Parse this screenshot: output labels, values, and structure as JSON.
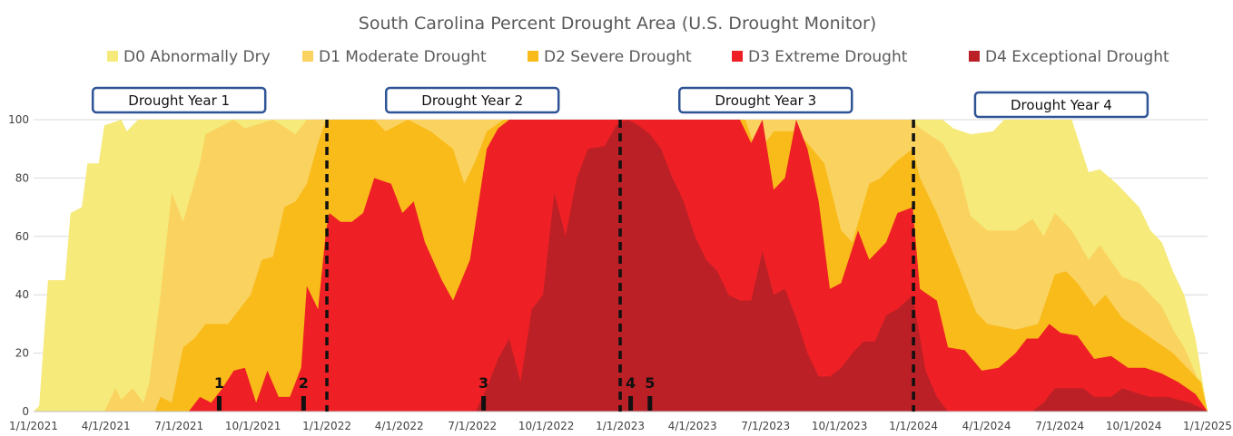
{
  "chart_data": {
    "type": "area",
    "stacking": "cumulative-overlay",
    "title": "South Carolina Percent Drought Area (U.S. Drought Monitor)",
    "ylim": [
      0,
      100
    ],
    "yticks": [
      0,
      20,
      40,
      60,
      80,
      100
    ],
    "xlim": [
      "2021-01-01",
      "2025-01-01"
    ],
    "xticks": [
      "1/1/2021",
      "4/1/2021",
      "7/1/2021",
      "10/1/2021",
      "1/1/2022",
      "4/1/2022",
      "7/1/2022",
      "10/1/2022",
      "1/1/2023",
      "4/1/2023",
      "7/1/2023",
      "10/1/2023",
      "1/1/2024",
      "4/1/2024",
      "7/1/2024",
      "10/1/2024",
      "1/1/2025"
    ],
    "grid": "horizontal",
    "legend_position": "top",
    "series": [
      {
        "name": "D0 Abnormally Dry",
        "color": "#f5ea7a",
        "points": [
          [
            "2021-01-01",
            0
          ],
          [
            "2021-01-08",
            2
          ],
          [
            "2021-01-19",
            45
          ],
          [
            "2021-02-09",
            45
          ],
          [
            "2021-02-16",
            68
          ],
          [
            "2021-03-02",
            70
          ],
          [
            "2021-03-09",
            85
          ],
          [
            "2021-03-23",
            85
          ],
          [
            "2021-03-30",
            98
          ],
          [
            "2021-04-20",
            100
          ],
          [
            "2021-04-27",
            96
          ],
          [
            "2021-05-11",
            100
          ],
          [
            "2021-12-31",
            100
          ],
          [
            "2023-12-31",
            100
          ],
          [
            "2024-02-06",
            100
          ],
          [
            "2024-02-20",
            97
          ],
          [
            "2024-03-12",
            95
          ],
          [
            "2024-04-09",
            96
          ],
          [
            "2024-04-23",
            100
          ],
          [
            "2024-07-16",
            100
          ],
          [
            "2024-08-06",
            82
          ],
          [
            "2024-08-20",
            83
          ],
          [
            "2024-09-10",
            78
          ],
          [
            "2024-10-08",
            70
          ],
          [
            "2024-10-22",
            62
          ],
          [
            "2024-11-05",
            58
          ],
          [
            "2024-11-19",
            48
          ],
          [
            "2024-12-03",
            40
          ],
          [
            "2024-12-17",
            25
          ],
          [
            "2025-01-01",
            0
          ]
        ]
      },
      {
        "name": "D1 Moderate Drought",
        "color": "#fad25f",
        "points": [
          [
            "2021-01-01",
            0
          ],
          [
            "2021-03-30",
            0
          ],
          [
            "2021-04-13",
            8
          ],
          [
            "2021-04-20",
            4
          ],
          [
            "2021-05-04",
            8
          ],
          [
            "2021-05-18",
            3
          ],
          [
            "2021-05-25",
            10
          ],
          [
            "2021-06-08",
            40
          ],
          [
            "2021-06-22",
            75
          ],
          [
            "2021-07-06",
            65
          ],
          [
            "2021-07-27",
            85
          ],
          [
            "2021-08-03",
            95
          ],
          [
            "2021-08-17",
            97
          ],
          [
            "2021-09-07",
            100
          ],
          [
            "2021-09-21",
            97
          ],
          [
            "2021-10-26",
            100
          ],
          [
            "2021-11-23",
            95
          ],
          [
            "2021-12-07",
            100
          ],
          [
            "2021-12-31",
            100
          ],
          [
            "2023-12-31",
            100
          ],
          [
            "2024-01-09",
            97
          ],
          [
            "2024-02-06",
            92
          ],
          [
            "2024-02-27",
            82
          ],
          [
            "2024-03-12",
            67
          ],
          [
            "2024-04-02",
            62
          ],
          [
            "2024-05-07",
            62
          ],
          [
            "2024-05-28",
            66
          ],
          [
            "2024-06-11",
            60
          ],
          [
            "2024-06-25",
            68
          ],
          [
            "2024-07-16",
            62
          ],
          [
            "2024-08-06",
            52
          ],
          [
            "2024-08-20",
            57
          ],
          [
            "2024-09-17",
            46
          ],
          [
            "2024-10-08",
            44
          ],
          [
            "2024-10-22",
            40
          ],
          [
            "2024-11-05",
            36
          ],
          [
            "2024-11-19",
            28
          ],
          [
            "2024-12-03",
            22
          ],
          [
            "2024-12-17",
            13
          ],
          [
            "2025-01-01",
            0
          ]
        ]
      },
      {
        "name": "D2 Severe Drought",
        "color": "#f9bb1a",
        "points": [
          [
            "2021-01-01",
            0
          ],
          [
            "2021-06-01",
            0
          ],
          [
            "2021-06-08",
            5
          ],
          [
            "2021-06-22",
            3
          ],
          [
            "2021-07-06",
            22
          ],
          [
            "2021-07-20",
            25
          ],
          [
            "2021-08-03",
            30
          ],
          [
            "2021-08-31",
            30
          ],
          [
            "2021-09-14",
            35
          ],
          [
            "2021-09-28",
            40
          ],
          [
            "2021-10-12",
            52
          ],
          [
            "2021-10-26",
            53
          ],
          [
            "2021-11-09",
            70
          ],
          [
            "2021-11-23",
            72
          ],
          [
            "2021-12-07",
            78
          ],
          [
            "2021-12-21",
            92
          ],
          [
            "2021-12-31",
            100
          ],
          [
            "2022-03-01",
            100
          ],
          [
            "2022-03-15",
            96
          ],
          [
            "2022-04-12",
            100
          ],
          [
            "2022-05-10",
            96
          ],
          [
            "2022-06-07",
            90
          ],
          [
            "2022-06-21",
            78
          ],
          [
            "2022-07-05",
            86
          ],
          [
            "2022-07-19",
            96
          ],
          [
            "2022-08-09",
            100
          ],
          [
            "2023-06-06",
            100
          ],
          [
            "2023-06-20",
            88
          ],
          [
            "2023-07-11",
            96
          ],
          [
            "2023-08-08",
            96
          ],
          [
            "2023-08-22",
            92
          ],
          [
            "2023-09-12",
            85
          ],
          [
            "2023-10-03",
            62
          ],
          [
            "2023-10-17",
            58
          ],
          [
            "2023-11-07",
            78
          ],
          [
            "2023-11-21",
            80
          ],
          [
            "2023-12-12",
            86
          ],
          [
            "2023-12-31",
            90
          ],
          [
            "2024-01-09",
            80
          ],
          [
            "2024-01-30",
            68
          ],
          [
            "2024-02-27",
            49
          ],
          [
            "2024-03-19",
            34
          ],
          [
            "2024-04-02",
            30
          ],
          [
            "2024-05-07",
            28
          ],
          [
            "2024-06-04",
            30
          ],
          [
            "2024-06-25",
            47
          ],
          [
            "2024-07-09",
            48
          ],
          [
            "2024-07-23",
            44
          ],
          [
            "2024-08-13",
            36
          ],
          [
            "2024-08-27",
            40
          ],
          [
            "2024-09-17",
            32
          ],
          [
            "2024-10-08",
            28
          ],
          [
            "2024-10-29",
            24
          ],
          [
            "2024-11-19",
            20
          ],
          [
            "2024-12-10",
            14
          ],
          [
            "2024-12-24",
            10
          ],
          [
            "2025-01-01",
            0
          ]
        ]
      },
      {
        "name": "D3 Extreme Drought",
        "color": "#ee2025",
        "points": [
          [
            "2021-01-01",
            0
          ],
          [
            "2021-07-13",
            0
          ],
          [
            "2021-07-27",
            5
          ],
          [
            "2021-08-10",
            3
          ],
          [
            "2021-08-24",
            8
          ],
          [
            "2021-09-07",
            14
          ],
          [
            "2021-09-21",
            15
          ],
          [
            "2021-10-05",
            3
          ],
          [
            "2021-10-19",
            14
          ],
          [
            "2021-11-02",
            5
          ],
          [
            "2021-11-16",
            5
          ],
          [
            "2021-11-30",
            15
          ],
          [
            "2021-12-07",
            43
          ],
          [
            "2021-12-21",
            35
          ],
          [
            "2021-12-31",
            62
          ],
          [
            "2022-01-04",
            68
          ],
          [
            "2022-01-18",
            65
          ],
          [
            "2022-02-01",
            65
          ],
          [
            "2022-02-15",
            68
          ],
          [
            "2022-03-01",
            80
          ],
          [
            "2022-03-22",
            78
          ],
          [
            "2022-04-05",
            68
          ],
          [
            "2022-04-19",
            72
          ],
          [
            "2022-05-03",
            58
          ],
          [
            "2022-05-24",
            45
          ],
          [
            "2022-06-07",
            38
          ],
          [
            "2022-06-28",
            52
          ],
          [
            "2022-07-19",
            90
          ],
          [
            "2022-08-02",
            97
          ],
          [
            "2022-08-16",
            100
          ],
          [
            "2023-05-30",
            100
          ],
          [
            "2023-06-13",
            92
          ],
          [
            "2023-06-27",
            100
          ],
          [
            "2023-07-11",
            76
          ],
          [
            "2023-07-25",
            80
          ],
          [
            "2023-08-08",
            100
          ],
          [
            "2023-08-22",
            90
          ],
          [
            "2023-09-05",
            72
          ],
          [
            "2023-09-19",
            42
          ],
          [
            "2023-10-03",
            44
          ],
          [
            "2023-10-24",
            62
          ],
          [
            "2023-11-07",
            52
          ],
          [
            "2023-11-28",
            58
          ],
          [
            "2023-12-12",
            68
          ],
          [
            "2023-12-31",
            70
          ],
          [
            "2024-01-09",
            42
          ],
          [
            "2024-01-30",
            38
          ],
          [
            "2024-02-13",
            22
          ],
          [
            "2024-03-05",
            21
          ],
          [
            "2024-03-26",
            14
          ],
          [
            "2024-04-16",
            15
          ],
          [
            "2024-05-07",
            20
          ],
          [
            "2024-05-21",
            25
          ],
          [
            "2024-06-04",
            25
          ],
          [
            "2024-06-18",
            30
          ],
          [
            "2024-07-02",
            27
          ],
          [
            "2024-07-23",
            26
          ],
          [
            "2024-08-13",
            18
          ],
          [
            "2024-09-03",
            19
          ],
          [
            "2024-09-24",
            15
          ],
          [
            "2024-10-15",
            15
          ],
          [
            "2024-11-05",
            13
          ],
          [
            "2024-11-26",
            10
          ],
          [
            "2024-12-17",
            6
          ],
          [
            "2025-01-01",
            0
          ]
        ]
      },
      {
        "name": "D4 Exceptional Drought",
        "color": "#bb2026",
        "points": [
          [
            "2021-01-01",
            0
          ],
          [
            "2022-07-05",
            0
          ],
          [
            "2022-07-19",
            8
          ],
          [
            "2022-08-02",
            18
          ],
          [
            "2022-08-16",
            25
          ],
          [
            "2022-08-30",
            10
          ],
          [
            "2022-09-13",
            35
          ],
          [
            "2022-09-27",
            40
          ],
          [
            "2022-10-11",
            75
          ],
          [
            "2022-10-25",
            60
          ],
          [
            "2022-11-08",
            80
          ],
          [
            "2022-11-22",
            90
          ],
          [
            "2022-12-13",
            91
          ],
          [
            "2022-12-27",
            98
          ],
          [
            "2023-01-10",
            100
          ],
          [
            "2023-01-24",
            98
          ],
          [
            "2023-02-07",
            95
          ],
          [
            "2023-02-21",
            90
          ],
          [
            "2023-03-07",
            80
          ],
          [
            "2023-03-21",
            72
          ],
          [
            "2023-04-04",
            60
          ],
          [
            "2023-04-18",
            52
          ],
          [
            "2023-05-02",
            48
          ],
          [
            "2023-05-16",
            40
          ],
          [
            "2023-05-30",
            38
          ],
          [
            "2023-06-13",
            38
          ],
          [
            "2023-06-27",
            55
          ],
          [
            "2023-07-11",
            40
          ],
          [
            "2023-07-25",
            42
          ],
          [
            "2023-08-08",
            32
          ],
          [
            "2023-08-22",
            20
          ],
          [
            "2023-09-05",
            12
          ],
          [
            "2023-09-19",
            12
          ],
          [
            "2023-10-03",
            15
          ],
          [
            "2023-10-17",
            20
          ],
          [
            "2023-10-31",
            24
          ],
          [
            "2023-11-14",
            24
          ],
          [
            "2023-11-28",
            33
          ],
          [
            "2023-12-12",
            35
          ],
          [
            "2023-12-31",
            40
          ],
          [
            "2024-01-16",
            14
          ],
          [
            "2024-01-30",
            5
          ],
          [
            "2024-02-13",
            0
          ],
          [
            "2024-05-28",
            0
          ],
          [
            "2024-06-11",
            3
          ],
          [
            "2024-06-25",
            8
          ],
          [
            "2024-07-30",
            8
          ],
          [
            "2024-08-13",
            5
          ],
          [
            "2024-09-03",
            5
          ],
          [
            "2024-09-17",
            8
          ],
          [
            "2024-10-08",
            6
          ],
          [
            "2024-10-22",
            5
          ],
          [
            "2024-11-12",
            5
          ],
          [
            "2024-12-10",
            3
          ],
          [
            "2025-01-01",
            0
          ]
        ]
      }
    ],
    "annotations": {
      "year_boxes": [
        {
          "label": "Drought Year 1",
          "center": "2021-07-01"
        },
        {
          "label": "Drought Year 2",
          "center": "2022-07-01"
        },
        {
          "label": "Drought Year 3",
          "center": "2023-07-01"
        },
        {
          "label": "Drought Year 4",
          "center": "2024-07-03"
        }
      ],
      "dividers": [
        "2022-01-01",
        "2023-01-01",
        "2024-01-01"
      ],
      "markers": [
        {
          "label": "1",
          "date": "2021-08-20"
        },
        {
          "label": "2",
          "date": "2021-12-03"
        },
        {
          "label": "3",
          "date": "2022-07-15"
        },
        {
          "label": "4",
          "date": "2023-01-14"
        },
        {
          "label": "5",
          "date": "2023-02-07"
        }
      ]
    }
  }
}
